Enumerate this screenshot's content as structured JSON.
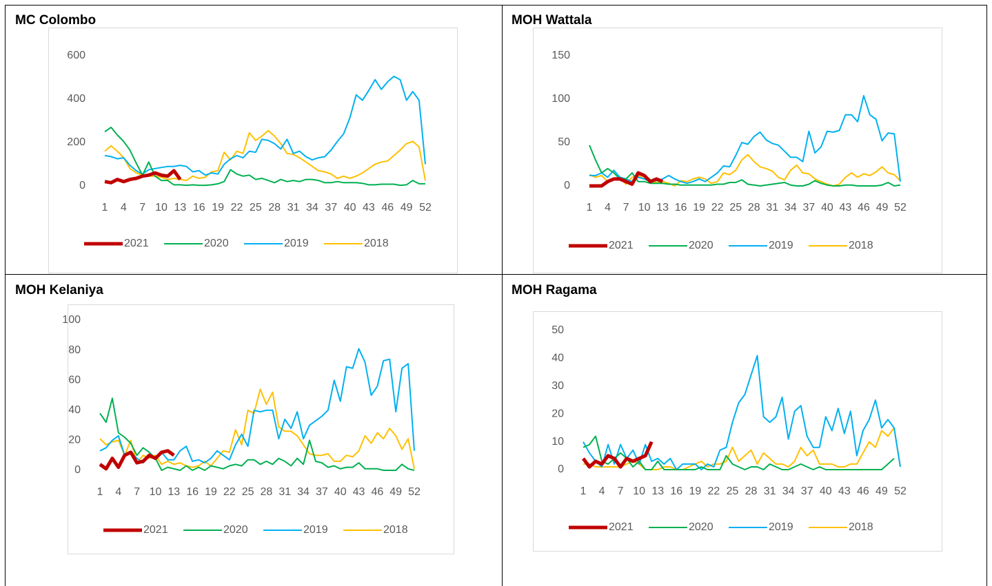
{
  "chart_data": [
    {
      "type": "line",
      "title": "MC Colombo",
      "categories": [
        "1",
        null,
        null,
        "4",
        null,
        null,
        "7",
        null,
        null,
        "10",
        null,
        null,
        "13",
        null,
        null,
        "16",
        null,
        null,
        "19",
        null,
        null,
        "22",
        null,
        null,
        "25",
        null,
        null,
        "28",
        null,
        null,
        "31",
        null,
        null,
        "34",
        null,
        null,
        "37",
        null,
        null,
        "40",
        null,
        null,
        "43",
        null,
        null,
        "46",
        null,
        null,
        "49",
        null,
        null,
        "52"
      ],
      "ylim": [
        0,
        600
      ],
      "yticks": [
        0,
        200,
        400,
        600
      ],
      "legend": "bottom",
      "series": [
        {
          "name": "2021",
          "color": "#c00000",
          "values": [
            20,
            15,
            30,
            20,
            30,
            35,
            45,
            50,
            60,
            50,
            45,
            70,
            30,
            null,
            null,
            null,
            null,
            null,
            null,
            null,
            null,
            null,
            null,
            null,
            null,
            null,
            null,
            null,
            null,
            null,
            null,
            null,
            null,
            null,
            null,
            null,
            null,
            null,
            null,
            null,
            null,
            null,
            null,
            null,
            null,
            null,
            null,
            null,
            null,
            null,
            null,
            null
          ]
        },
        {
          "name": "2020",
          "color": "#00b050",
          "values": [
            250,
            270,
            235,
            205,
            165,
            105,
            50,
            110,
            45,
            25,
            25,
            5,
            5,
            3,
            5,
            3,
            3,
            5,
            10,
            20,
            75,
            55,
            45,
            50,
            30,
            35,
            25,
            15,
            30,
            20,
            25,
            20,
            30,
            30,
            25,
            15,
            15,
            20,
            15,
            15,
            15,
            12,
            5,
            5,
            8,
            8,
            8,
            3,
            5,
            25,
            10,
            10
          ]
        },
        {
          "name": "2019",
          "color": "#00b0f0",
          "values": [
            140,
            135,
            125,
            130,
            95,
            70,
            55,
            75,
            80,
            85,
            90,
            90,
            95,
            90,
            65,
            70,
            50,
            60,
            55,
            100,
            125,
            140,
            130,
            160,
            155,
            215,
            210,
            195,
            170,
            215,
            150,
            160,
            135,
            120,
            130,
            135,
            165,
            205,
            240,
            315,
            420,
            395,
            440,
            490,
            445,
            480,
            505,
            490,
            395,
            435,
            395,
            100
          ]
        },
        {
          "name": "2018",
          "color": "#ffc000",
          "values": [
            160,
            185,
            160,
            130,
            80,
            60,
            50,
            45,
            45,
            40,
            30,
            35,
            30,
            25,
            45,
            35,
            40,
            65,
            70,
            155,
            120,
            160,
            150,
            245,
            210,
            230,
            255,
            230,
            195,
            150,
            145,
            130,
            110,
            90,
            70,
            65,
            55,
            35,
            45,
            35,
            45,
            60,
            80,
            100,
            110,
            115,
            140,
            165,
            195,
            205,
            180,
            25
          ]
        }
      ]
    },
    {
      "type": "line",
      "title": "MOH Wattala",
      "categories": [
        "1",
        null,
        null,
        "4",
        null,
        null,
        "7",
        null,
        null,
        "10",
        null,
        null,
        "13",
        null,
        null,
        "16",
        null,
        null,
        "19",
        null,
        null,
        "22",
        null,
        null,
        "25",
        null,
        null,
        "28",
        null,
        null,
        "31",
        null,
        null,
        "34",
        null,
        null,
        "37",
        null,
        null,
        "40",
        null,
        null,
        "43",
        null,
        null,
        "46",
        null,
        null,
        "49",
        null,
        null,
        "52"
      ],
      "ylim": [
        0,
        150
      ],
      "yticks": [
        0,
        50,
        100,
        150
      ],
      "legend": "bottom",
      "series": [
        {
          "name": "2021",
          "color": "#c00000",
          "values": [
            0,
            0,
            0,
            5,
            8,
            8,
            5,
            2,
            15,
            12,
            5,
            8,
            5,
            null,
            null,
            null,
            null,
            null,
            null,
            null,
            null,
            null,
            null,
            null,
            null,
            null,
            null,
            null,
            null,
            null,
            null,
            null,
            null,
            null,
            null,
            null,
            null,
            null,
            null,
            null,
            null,
            null,
            null,
            null,
            null,
            null,
            null,
            null,
            null,
            null,
            null,
            null
          ]
        },
        {
          "name": "2020",
          "color": "#00b050",
          "values": [
            47,
            30,
            15,
            20,
            15,
            8,
            8,
            15,
            5,
            5,
            3,
            3,
            3,
            2,
            2,
            1,
            1,
            1,
            1,
            1,
            1,
            2,
            2,
            4,
            4,
            7,
            2,
            1,
            0,
            1,
            2,
            3,
            4,
            1,
            0,
            0,
            2,
            6,
            3,
            1,
            0,
            0,
            1,
            1,
            0,
            0,
            0,
            0,
            1,
            4,
            0,
            1
          ]
        },
        {
          "name": "2019",
          "color": "#00b0f0",
          "values": [
            12,
            12,
            15,
            10,
            18,
            10,
            8,
            5,
            10,
            8,
            5,
            6,
            8,
            12,
            8,
            5,
            3,
            5,
            8,
            5,
            10,
            15,
            23,
            22,
            35,
            50,
            48,
            57,
            62,
            53,
            49,
            47,
            40,
            33,
            33,
            28,
            63,
            38,
            45,
            63,
            62,
            64,
            82,
            82,
            74,
            104,
            82,
            77,
            52,
            61,
            60,
            5
          ]
        },
        {
          "name": "2018",
          "color": "#ffc000",
          "values": [
            13,
            10,
            12,
            5,
            8,
            9,
            2,
            10,
            12,
            8,
            5,
            4,
            5,
            3,
            0,
            6,
            5,
            8,
            10,
            8,
            3,
            5,
            15,
            13,
            18,
            30,
            36,
            28,
            22,
            20,
            17,
            10,
            7,
            18,
            24,
            15,
            14,
            8,
            5,
            2,
            0,
            2,
            10,
            15,
            10,
            14,
            12,
            16,
            22,
            15,
            13,
            6
          ]
        }
      ]
    },
    {
      "type": "line",
      "title": "MOH Kelaniya",
      "categories": [
        "1",
        null,
        null,
        "4",
        null,
        null,
        "7",
        null,
        null,
        "10",
        null,
        null,
        "13",
        null,
        null,
        "16",
        null,
        null,
        "19",
        null,
        null,
        "22",
        null,
        null,
        "25",
        null,
        null,
        "28",
        null,
        null,
        "31",
        null,
        null,
        "34",
        null,
        null,
        "37",
        null,
        null,
        "40",
        null,
        null,
        "43",
        null,
        null,
        "46",
        null,
        null,
        "49",
        null,
        null,
        "52"
      ],
      "ylim": [
        0,
        100
      ],
      "yticks": [
        0,
        20,
        40,
        60,
        80,
        100
      ],
      "legend": "bottom",
      "series": [
        {
          "name": "2021",
          "color": "#c00000",
          "values": [
            4,
            1,
            8,
            2,
            10,
            12,
            5,
            6,
            10,
            8,
            12,
            13,
            10,
            null,
            null,
            null,
            null,
            null,
            null,
            null,
            null,
            null,
            null,
            null,
            null,
            null,
            null,
            null,
            null,
            null,
            null,
            null,
            null,
            null,
            null,
            null,
            null,
            null,
            null,
            null,
            null,
            null,
            null,
            null,
            null,
            null,
            null,
            null,
            null,
            null,
            null,
            null
          ]
        },
        {
          "name": "2020",
          "color": "#00b050",
          "values": [
            38,
            32,
            48,
            25,
            22,
            18,
            10,
            15,
            12,
            8,
            0,
            2,
            1,
            0,
            3,
            0,
            2,
            0,
            3,
            2,
            1,
            3,
            4,
            3,
            7,
            7,
            4,
            6,
            4,
            8,
            6,
            3,
            8,
            4,
            20,
            6,
            5,
            2,
            3,
            1,
            2,
            2,
            5,
            1,
            1,
            1,
            0,
            0,
            0,
            4,
            1,
            0
          ]
        },
        {
          "name": "2019",
          "color": "#00b0f0",
          "values": [
            13,
            15,
            20,
            23,
            10,
            12,
            8,
            5,
            9,
            8,
            12,
            7,
            7,
            13,
            16,
            6,
            7,
            5,
            8,
            13,
            10,
            7,
            17,
            24,
            16,
            40,
            39,
            40,
            40,
            21,
            34,
            28,
            39,
            21,
            30,
            33,
            36,
            40,
            60,
            46,
            69,
            68,
            81,
            72,
            50,
            56,
            73,
            74,
            39,
            68,
            71,
            13
          ]
        },
        {
          "name": "2018",
          "color": "#ffc000",
          "values": [
            21,
            17,
            19,
            20,
            10,
            20,
            5,
            10,
            8,
            10,
            4,
            6,
            4,
            5,
            3,
            2,
            3,
            6,
            3,
            8,
            13,
            12,
            27,
            17,
            40,
            38,
            54,
            44,
            52,
            29,
            26,
            26,
            23,
            17,
            11,
            10,
            10,
            11,
            6,
            6,
            10,
            9,
            13,
            23,
            18,
            25,
            21,
            28,
            23,
            14,
            21,
            1
          ]
        }
      ]
    },
    {
      "type": "line",
      "title": "MOH Ragama",
      "categories": [
        "1",
        null,
        null,
        "4",
        null,
        null,
        "7",
        null,
        null,
        "10",
        null,
        null,
        "13",
        null,
        null,
        "16",
        null,
        null,
        "19",
        null,
        null,
        "22",
        null,
        null,
        "25",
        null,
        null,
        "28",
        null,
        null,
        "31",
        null,
        null,
        "34",
        null,
        null,
        "37",
        null,
        null,
        "40",
        null,
        null,
        "43",
        null,
        null,
        "46",
        null,
        null,
        "49",
        null,
        null,
        "52"
      ],
      "ylim": [
        0,
        50
      ],
      "yticks": [
        0,
        10,
        20,
        30,
        40,
        50
      ],
      "legend": "bottom",
      "series": [
        {
          "name": "2021",
          "color": "#c00000",
          "values": [
            4,
            1,
            3,
            2,
            5,
            4,
            1,
            4,
            3,
            4,
            5,
            10,
            null,
            null,
            null,
            null,
            null,
            null,
            null,
            null,
            null,
            null,
            null,
            null,
            null,
            null,
            null,
            null,
            null,
            null,
            null,
            null,
            null,
            null,
            null,
            null,
            null,
            null,
            null,
            null,
            null,
            null,
            null,
            null,
            null,
            null,
            null,
            null,
            null,
            null,
            null,
            null
          ]
        },
        {
          "name": "2020",
          "color": "#00b050",
          "values": [
            8,
            9,
            12,
            3,
            2,
            4,
            6,
            4,
            1,
            3,
            0,
            0,
            3,
            0,
            0,
            0,
            0,
            0,
            0,
            1,
            0,
            0,
            0,
            5,
            2,
            1,
            0,
            1,
            1,
            0,
            2,
            1,
            0,
            0,
            1,
            2,
            1,
            0,
            1,
            0,
            0,
            0,
            0,
            0,
            0,
            0,
            0,
            0,
            0,
            2,
            4,
            null
          ]
        },
        {
          "name": "2019",
          "color": "#00b0f0",
          "values": [
            10,
            6,
            3,
            1,
            9,
            2,
            9,
            4,
            7,
            2,
            9,
            3,
            4,
            2,
            4,
            0,
            2,
            2,
            2,
            0,
            2,
            1,
            7,
            8,
            17,
            24,
            27,
            34,
            41,
            19,
            17,
            19,
            26,
            11,
            21,
            23,
            12,
            8,
            8,
            19,
            14,
            22,
            13,
            21,
            5,
            14,
            18,
            25,
            15,
            18,
            15,
            1
          ]
        },
        {
          "name": "2018",
          "color": "#ffc000",
          "values": [
            2,
            2,
            1,
            1,
            1,
            1,
            1,
            2,
            3,
            2,
            0,
            0,
            0,
            1,
            1,
            0,
            0,
            1,
            2,
            3,
            1,
            2,
            2,
            3,
            8,
            3,
            5,
            7,
            2,
            6,
            4,
            2,
            2,
            1,
            3,
            8,
            5,
            7,
            2,
            2,
            2,
            1,
            1,
            2,
            2,
            6,
            10,
            8,
            14,
            12,
            15,
            1
          ]
        }
      ]
    }
  ]
}
